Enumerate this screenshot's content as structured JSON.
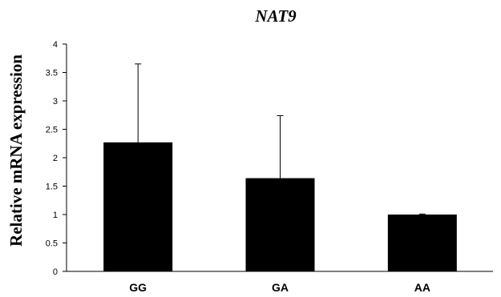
{
  "chart_data": {
    "type": "bar",
    "title": "NAT9",
    "xlabel": "",
    "ylabel": "Relative mRNA expression",
    "categories": [
      "GG",
      "GA",
      "AA"
    ],
    "values": [
      2.27,
      1.64,
      1.0
    ],
    "error_plus": [
      1.38,
      1.1,
      0.01
    ],
    "ylim": [
      0,
      4
    ],
    "yticks": [
      "0",
      "0.5",
      "1",
      "1.5",
      "2",
      "2.5",
      "3",
      "3.5",
      "4"
    ],
    "bar_color": "#000000",
    "grid": false,
    "legend": "none"
  }
}
